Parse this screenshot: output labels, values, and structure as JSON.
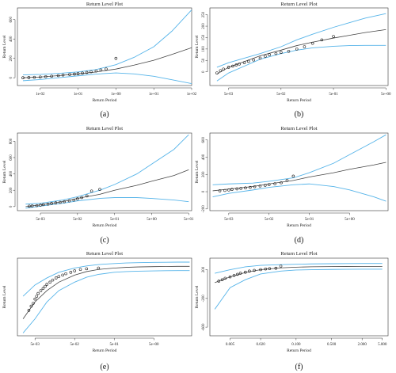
{
  "colors": {
    "fit": "#444444",
    "ci": "#56b4e9",
    "points": "#111111"
  },
  "chart_data": [
    {
      "type": "line",
      "title": "Return Level Plot",
      "xlabel": "Return Period",
      "ylabel": "Return Level",
      "caption": "(a)",
      "xscale": "log",
      "xlim": [
        0.0025,
        100
      ],
      "ylim": [
        -80,
        720
      ],
      "xticks": [
        0.01,
        0.1,
        1,
        10,
        100
      ],
      "xtick_labels": [
        "1e-02",
        "1e-01",
        "1e+00",
        "1e+01",
        "1e+02"
      ],
      "yticks": [
        0,
        200,
        400,
        600
      ],
      "ytick_labels": [
        "0",
        "200",
        "400",
        "600"
      ],
      "series": [
        {
          "role": "fit",
          "x": [
            0.0035,
            0.01,
            0.03,
            0.1,
            0.3,
            1,
            3,
            10,
            30,
            100
          ],
          "y": [
            0,
            8,
            22,
            40,
            60,
            90,
            130,
            180,
            240,
            310
          ]
        },
        {
          "role": "upper",
          "x": [
            0.0035,
            0.01,
            0.03,
            0.1,
            0.3,
            1,
            3,
            10,
            30,
            100
          ],
          "y": [
            30,
            35,
            45,
            60,
            85,
            135,
            210,
            320,
            480,
            700
          ]
        },
        {
          "role": "lower",
          "x": [
            0.0035,
            0.01,
            0.03,
            0.1,
            0.3,
            1,
            3,
            10,
            30,
            100
          ],
          "y": [
            -30,
            -18,
            0,
            20,
            38,
            50,
            40,
            15,
            -20,
            -60
          ]
        },
        {
          "role": "points",
          "x": [
            0.0035,
            0.005,
            0.007,
            0.01,
            0.014,
            0.02,
            0.03,
            0.04,
            0.06,
            0.08,
            0.1,
            0.13,
            0.17,
            0.22,
            0.3,
            0.4,
            0.55,
            1.0
          ],
          "y": [
            0,
            2,
            5,
            8,
            12,
            16,
            22,
            28,
            34,
            38,
            42,
            48,
            55,
            62,
            70,
            80,
            90,
            200
          ]
        }
      ]
    },
    {
      "type": "line",
      "title": "Return Level Plot",
      "xlabel": "Return Period",
      "ylabel": "Return Level",
      "caption": "(b)",
      "xscale": "log",
      "xlim": [
        0.0022,
        5.5
      ],
      "ylim": [
        -60,
        280
      ],
      "xticks": [
        0.005,
        0.05,
        0.5,
        5
      ],
      "xtick_labels": [
        "5e-03",
        "5e-02",
        "5e-01",
        "5e+00"
      ],
      "yticks": [
        0,
        50,
        100,
        150,
        200,
        250
      ],
      "ytick_labels": [
        "0",
        "50",
        "100",
        "150",
        "200",
        "250"
      ],
      "series": [
        {
          "role": "fit",
          "x": [
            0.003,
            0.005,
            0.01,
            0.02,
            0.05,
            0.1,
            0.2,
            0.5,
            1,
            2,
            5
          ],
          "y": [
            -10,
            20,
            45,
            70,
            95,
            115,
            130,
            148,
            160,
            172,
            185
          ]
        },
        {
          "role": "upper",
          "x": [
            0.003,
            0.005,
            0.01,
            0.02,
            0.05,
            0.1,
            0.2,
            0.5,
            1,
            2,
            5
          ],
          "y": [
            20,
            40,
            60,
            80,
            110,
            140,
            165,
            195,
            215,
            235,
            255
          ]
        },
        {
          "role": "lower",
          "x": [
            0.003,
            0.005,
            0.01,
            0.02,
            0.05,
            0.1,
            0.2,
            0.5,
            1,
            2,
            5
          ],
          "y": [
            -40,
            -5,
            25,
            55,
            80,
            95,
            105,
            112,
            115,
            116,
            116
          ]
        },
        {
          "role": "points",
          "x": [
            0.003,
            0.0035,
            0.004,
            0.005,
            0.006,
            0.007,
            0.008,
            0.01,
            0.012,
            0.015,
            0.02,
            0.025,
            0.03,
            0.04,
            0.05,
            0.07,
            0.1,
            0.14,
            0.2,
            0.3,
            0.5
          ],
          "y": [
            -5,
            5,
            12,
            20,
            25,
            30,
            34,
            40,
            46,
            52,
            60,
            68,
            75,
            80,
            85,
            90,
            100,
            110,
            125,
            140,
            155
          ]
        }
      ]
    },
    {
      "type": "line",
      "title": "Return Level Plot",
      "xlabel": "Return Period",
      "ylabel": "Return Level",
      "caption": "(c)",
      "xscale": "log",
      "xlim": [
        0.0012,
        60
      ],
      "ylim": [
        -50,
        900
      ],
      "xticks": [
        0.005,
        0.05,
        0.5,
        5,
        50
      ],
      "xtick_labels": [
        "5e-03",
        "5e-02",
        "5e-01",
        "5e+00",
        "5e+01"
      ],
      "yticks": [
        0,
        200,
        400,
        600,
        800
      ],
      "ytick_labels": [
        "0",
        "200",
        "400",
        "600",
        "800"
      ],
      "series": [
        {
          "role": "fit",
          "x": [
            0.002,
            0.005,
            0.02,
            0.05,
            0.2,
            0.5,
            2,
            5,
            20,
            50
          ],
          "y": [
            0,
            20,
            60,
            100,
            150,
            200,
            260,
            310,
            380,
            450
          ]
        },
        {
          "role": "upper",
          "x": [
            0.002,
            0.005,
            0.02,
            0.05,
            0.2,
            0.5,
            2,
            5,
            20,
            50
          ],
          "y": [
            30,
            40,
            80,
            120,
            200,
            270,
            400,
            520,
            700,
            880
          ]
        },
        {
          "role": "lower",
          "x": [
            0.002,
            0.005,
            0.02,
            0.05,
            0.2,
            0.5,
            2,
            5,
            20,
            50
          ],
          "y": [
            -20,
            5,
            40,
            70,
            100,
            110,
            110,
            100,
            80,
            60
          ]
        },
        {
          "role": "points",
          "x": [
            0.0025,
            0.003,
            0.004,
            0.005,
            0.006,
            0.008,
            0.01,
            0.013,
            0.017,
            0.022,
            0.03,
            0.04,
            0.05,
            0.065,
            0.09,
            0.12,
            0.2
          ],
          "y": [
            5,
            8,
            12,
            18,
            24,
            30,
            38,
            45,
            52,
            60,
            70,
            80,
            95,
            110,
            130,
            190,
            210
          ]
        }
      ]
    },
    {
      "type": "line",
      "title": "Return Level Plot",
      "xlabel": "Return Period",
      "ylabel": "Return Level",
      "caption": "(d)",
      "xscale": "log",
      "xlim": [
        0.0017,
        45
      ],
      "ylim": [
        -220,
        680
      ],
      "xticks": [
        0.005,
        0.05,
        0.5,
        5
      ],
      "xtick_labels": [
        "5e-03",
        "5e-02",
        "5e-01",
        "5e+00"
      ],
      "yticks": [
        -200,
        0,
        200,
        400,
        600
      ],
      "ytick_labels": [
        "-200",
        "0",
        "200",
        "400",
        "600"
      ],
      "series": [
        {
          "role": "fit",
          "x": [
            0.002,
            0.005,
            0.02,
            0.05,
            0.2,
            0.5,
            2,
            5,
            20,
            40
          ],
          "y": [
            10,
            30,
            60,
            90,
            130,
            170,
            220,
            260,
            310,
            340
          ]
        },
        {
          "role": "upper",
          "x": [
            0.002,
            0.005,
            0.02,
            0.05,
            0.2,
            0.5,
            2,
            5,
            20,
            40
          ],
          "y": [
            80,
            90,
            100,
            120,
            160,
            220,
            330,
            430,
            580,
            660
          ]
        },
        {
          "role": "lower",
          "x": [
            0.002,
            0.005,
            0.02,
            0.05,
            0.2,
            0.5,
            2,
            5,
            20,
            40
          ],
          "y": [
            -60,
            -20,
            20,
            50,
            80,
            90,
            60,
            20,
            -60,
            -110
          ]
        },
        {
          "role": "points",
          "x": [
            0.003,
            0.004,
            0.005,
            0.006,
            0.008,
            0.01,
            0.013,
            0.017,
            0.022,
            0.03,
            0.04,
            0.05,
            0.07,
            0.1,
            0.14,
            0.2
          ],
          "y": [
            10,
            14,
            20,
            26,
            32,
            38,
            44,
            50,
            58,
            66,
            74,
            82,
            92,
            104,
            130,
            180
          ]
        }
      ]
    },
    {
      "type": "line",
      "title": "Return Level Plot",
      "xlabel": "Return Period",
      "ylabel": "Return Level",
      "caption": "(e)",
      "xscale": "log",
      "xlim": [
        0.0018,
        45
      ],
      "ylim": [
        -320,
        230
      ],
      "xticks": [
        0.005,
        0.05,
        0.5,
        5
      ],
      "xtick_labels": [
        "5e-03",
        "5e-02",
        "5e-01",
        "5e+00"
      ],
      "yticks": [],
      "ytick_labels": [],
      "series": [
        {
          "role": "fit",
          "x": [
            0.0025,
            0.005,
            0.01,
            0.02,
            0.05,
            0.1,
            0.2,
            0.5,
            1,
            2,
            5,
            10,
            20,
            40
          ],
          "y": [
            -200,
            -80,
            0,
            60,
            110,
            135,
            150,
            160,
            165,
            168,
            170,
            171,
            172,
            172
          ]
        },
        {
          "role": "upper",
          "x": [
            0.0025,
            0.005,
            0.01,
            0.02,
            0.05,
            0.1,
            0.2,
            0.5,
            1,
            2,
            5,
            10,
            20,
            40
          ],
          "y": [
            -40,
            40,
            90,
            130,
            160,
            175,
            185,
            192,
            196,
            198,
            200,
            201,
            202,
            202
          ]
        },
        {
          "role": "lower",
          "x": [
            0.0025,
            0.005,
            0.01,
            0.02,
            0.05,
            0.1,
            0.2,
            0.5,
            1,
            2,
            5,
            10,
            20,
            40
          ],
          "y": [
            -300,
            -200,
            -80,
            0,
            60,
            95,
            115,
            130,
            135,
            138,
            140,
            141,
            142,
            142
          ]
        },
        {
          "role": "points",
          "x": [
            0.0035,
            0.004,
            0.0045,
            0.005,
            0.0055,
            0.006,
            0.007,
            0.008,
            0.009,
            0.01,
            0.012,
            0.014,
            0.017,
            0.02,
            0.025,
            0.03,
            0.04,
            0.05,
            0.07,
            0.1,
            0.2
          ],
          "y": [
            -140,
            -110,
            -90,
            -60,
            -40,
            -20,
            0,
            15,
            30,
            45,
            60,
            75,
            90,
            100,
            110,
            120,
            130,
            140,
            150,
            155,
            160
          ]
        }
      ]
    },
    {
      "type": "line",
      "title": "Return Level Plot",
      "xlabel": "Return Period",
      "ylabel": "Return Level",
      "caption": "(f)",
      "xscale": "log",
      "xlim": [
        0.002,
        6.5
      ],
      "ylim": [
        -720,
        360
      ],
      "xticks": [
        0.005,
        0.02,
        0.1,
        0.5,
        2,
        5
      ],
      "xtick_labels": [
        "0.005",
        "0.020",
        "0.100",
        "0.500",
        "2.000",
        "5.000"
      ],
      "yticks": [
        -600,
        -200,
        200
      ],
      "ytick_labels": [
        "-600",
        "-200",
        "200"
      ],
      "series": [
        {
          "role": "fit",
          "x": [
            0.0025,
            0.005,
            0.01,
            0.02,
            0.05,
            0.1,
            0.2,
            0.5,
            1,
            2,
            5
          ],
          "y": [
            20,
            100,
            160,
            200,
            225,
            235,
            240,
            243,
            245,
            246,
            246
          ]
        },
        {
          "role": "upper",
          "x": [
            0.0025,
            0.005,
            0.01,
            0.02,
            0.05,
            0.1,
            0.2,
            0.5,
            1,
            2,
            5
          ],
          "y": [
            150,
            200,
            240,
            260,
            270,
            275,
            280,
            283,
            285,
            286,
            286
          ]
        },
        {
          "role": "lower",
          "x": [
            0.0025,
            0.005,
            0.01,
            0.02,
            0.05,
            0.1,
            0.2,
            0.5,
            1,
            2,
            5
          ],
          "y": [
            -350,
            -50,
            60,
            140,
            180,
            195,
            200,
            203,
            205,
            206,
            206
          ]
        },
        {
          "role": "points",
          "x": [
            0.003,
            0.0035,
            0.004,
            0.005,
            0.006,
            0.007,
            0.008,
            0.01,
            0.012,
            0.015,
            0.02,
            0.025,
            0.03,
            0.04,
            0.05
          ],
          "y": [
            40,
            60,
            80,
            100,
            120,
            135,
            150,
            165,
            180,
            190,
            200,
            210,
            215,
            220,
            250
          ]
        }
      ]
    }
  ]
}
